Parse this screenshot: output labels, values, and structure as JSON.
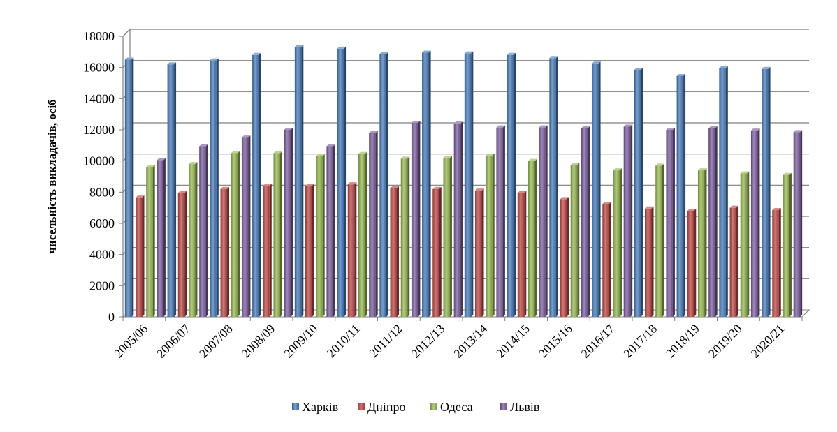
{
  "chart_data": {
    "type": "bar",
    "title": "",
    "xlabel": "",
    "ylabel": "чисельність викладачів, осіб",
    "ylim": [
      0,
      18000
    ],
    "yticks": [
      0,
      2000,
      4000,
      6000,
      8000,
      10000,
      12000,
      14000,
      16000,
      18000
    ],
    "grid": true,
    "legend_position": "bottom",
    "categories": [
      "2005/06",
      "2006/07",
      "2007/08",
      "2008/09",
      "2009/10",
      "2010/11",
      "2011/12",
      "2012/13",
      "2013/14",
      "2014/15",
      "2015/16",
      "2016/17",
      "2017/18",
      "2018/19",
      "2019/20",
      "2020/21"
    ],
    "series": [
      {
        "name": "Харків",
        "color": "#4a7ebb",
        "values": [
          16500,
          16200,
          16450,
          16800,
          17300,
          17200,
          16850,
          16950,
          16900,
          16800,
          16600,
          16250,
          15850,
          15450,
          15950,
          15900
        ]
      },
      {
        "name": "Дніпро",
        "color": "#be4b48",
        "values": [
          7650,
          7950,
          8200,
          8400,
          8400,
          8500,
          8250,
          8200,
          8100,
          7950,
          7550,
          7250,
          6950,
          6800,
          7000,
          6850
        ]
      },
      {
        "name": "Одеса",
        "color": "#98b954",
        "values": [
          9600,
          9800,
          10500,
          10500,
          10300,
          10450,
          10150,
          10200,
          10350,
          10000,
          9750,
          9400,
          9700,
          9400,
          9200,
          9100
        ]
      },
      {
        "name": "Львів",
        "color": "#7d60a0",
        "values": [
          10050,
          10950,
          11500,
          12000,
          10950,
          11800,
          12450,
          12400,
          12150,
          12150,
          12100,
          12200,
          12000,
          12100,
          11950,
          11850
        ]
      }
    ]
  }
}
